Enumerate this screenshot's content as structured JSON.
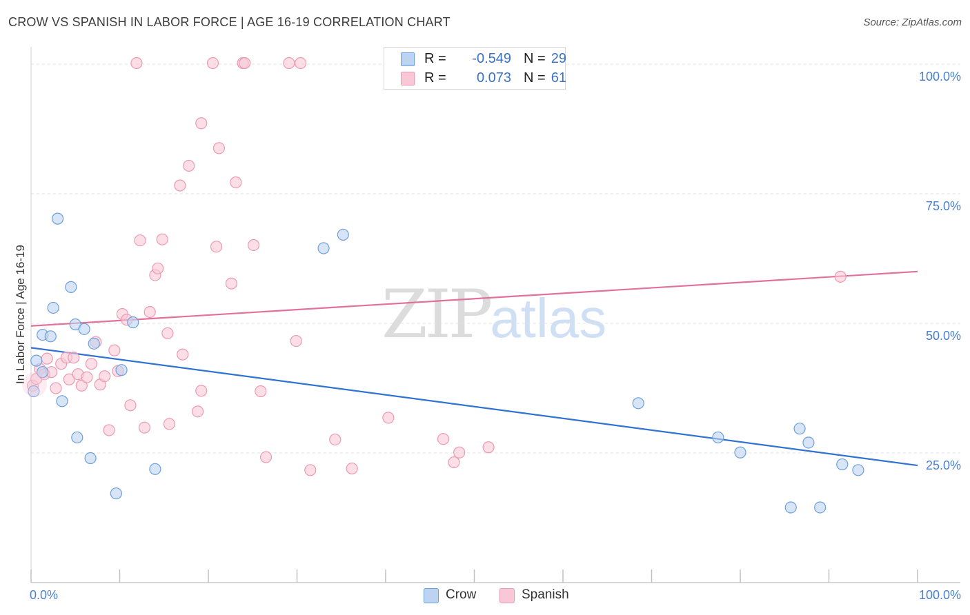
{
  "header": {
    "title": "CROW VS SPANISH IN LABOR FORCE | AGE 16-19 CORRELATION CHART",
    "source": "Source: ZipAtlas.com"
  },
  "watermark": {
    "zip": "ZIP",
    "atlas": "atlas"
  },
  "legend": {
    "r_label": "R =",
    "n_label": "N =",
    "crow": {
      "r": "-0.549",
      "n": "29"
    },
    "spanish": {
      "r": "0.073",
      "n": "61"
    }
  },
  "colors": {
    "crow_fill": "#bcd4f2",
    "crow_stroke": "#6c9fdc",
    "crow_line": "#2f72d0",
    "spanish_fill": "#f8c8d6",
    "spanish_stroke": "#ec9ab3",
    "spanish_line": "#e2709a",
    "tick_text": "#4a7fcf",
    "grid": "#e2e2e2"
  },
  "chart_data": {
    "type": "scatter",
    "title": "CROW VS SPANISH IN LABOR FORCE | AGE 16-19 CORRELATION CHART",
    "xlabel": "",
    "ylabel": "In Labor Force | Age 16-19",
    "xlim": [
      0,
      100
    ],
    "ylim": [
      0,
      102
    ],
    "x_tick_labels": [
      {
        "value": 0,
        "label": "0.0%"
      },
      {
        "value": 100,
        "label": "100.0%"
      }
    ],
    "y_tick_labels": [
      {
        "value": 25,
        "label": "25.0%"
      },
      {
        "value": 50,
        "label": "50.0%"
      },
      {
        "value": 75,
        "label": "75.0%"
      },
      {
        "value": 100,
        "label": "100.0%"
      }
    ],
    "series": [
      {
        "name": "Crow",
        "trend": {
          "x": [
            0,
            100
          ],
          "y": [
            45.3,
            22.6
          ]
        },
        "points": [
          {
            "x": 0.3,
            "y": 36.9
          },
          {
            "x": 0.6,
            "y": 42.8
          },
          {
            "x": 1.3,
            "y": 40.6
          },
          {
            "x": 1.3,
            "y": 47.8
          },
          {
            "x": 2.2,
            "y": 47.5
          },
          {
            "x": 2.5,
            "y": 53.0
          },
          {
            "x": 3.0,
            "y": 70.2
          },
          {
            "x": 3.5,
            "y": 35.0
          },
          {
            "x": 4.5,
            "y": 57.0
          },
          {
            "x": 5.0,
            "y": 49.8
          },
          {
            "x": 5.2,
            "y": 28.0
          },
          {
            "x": 6.0,
            "y": 48.9
          },
          {
            "x": 6.7,
            "y": 24.0
          },
          {
            "x": 7.1,
            "y": 46.1
          },
          {
            "x": 9.6,
            "y": 17.2
          },
          {
            "x": 10.2,
            "y": 41.0
          },
          {
            "x": 11.5,
            "y": 50.2
          },
          {
            "x": 14.0,
            "y": 21.9
          },
          {
            "x": 33.0,
            "y": 64.5
          },
          {
            "x": 35.2,
            "y": 67.1
          },
          {
            "x": 68.5,
            "y": 34.6
          },
          {
            "x": 77.5,
            "y": 28.0
          },
          {
            "x": 80.0,
            "y": 25.1
          },
          {
            "x": 85.7,
            "y": 14.5
          },
          {
            "x": 86.7,
            "y": 29.7
          },
          {
            "x": 87.7,
            "y": 27.0
          },
          {
            "x": 89.0,
            "y": 14.5
          },
          {
            "x": 91.5,
            "y": 22.8
          },
          {
            "x": 93.3,
            "y": 21.7
          }
        ]
      },
      {
        "name": "Spanish",
        "trend": {
          "x": [
            0,
            100
          ],
          "y": [
            49.5,
            60.0
          ]
        },
        "points": [
          {
            "x": 0.2,
            "y": 38.0
          },
          {
            "x": 0.6,
            "y": 39.3
          },
          {
            "x": 1.0,
            "y": 41.2
          },
          {
            "x": 1.5,
            "y": 40.2
          },
          {
            "x": 1.8,
            "y": 43.2
          },
          {
            "x": 2.3,
            "y": 40.6
          },
          {
            "x": 2.8,
            "y": 37.5
          },
          {
            "x": 3.4,
            "y": 42.2
          },
          {
            "x": 4.0,
            "y": 43.4
          },
          {
            "x": 4.3,
            "y": 39.2
          },
          {
            "x": 4.8,
            "y": 43.4
          },
          {
            "x": 5.3,
            "y": 40.2
          },
          {
            "x": 5.7,
            "y": 38.0
          },
          {
            "x": 6.3,
            "y": 39.6
          },
          {
            "x": 6.8,
            "y": 42.2
          },
          {
            "x": 7.3,
            "y": 46.4
          },
          {
            "x": 7.8,
            "y": 38.2
          },
          {
            "x": 8.3,
            "y": 39.8
          },
          {
            "x": 8.8,
            "y": 29.4
          },
          {
            "x": 9.4,
            "y": 44.8
          },
          {
            "x": 9.8,
            "y": 40.8
          },
          {
            "x": 10.3,
            "y": 51.8
          },
          {
            "x": 10.8,
            "y": 50.7
          },
          {
            "x": 11.2,
            "y": 34.2
          },
          {
            "x": 11.9,
            "y": 100.2
          },
          {
            "x": 12.3,
            "y": 66.0
          },
          {
            "x": 12.8,
            "y": 29.9
          },
          {
            "x": 13.4,
            "y": 52.2
          },
          {
            "x": 14.0,
            "y": 59.3
          },
          {
            "x": 14.3,
            "y": 60.6
          },
          {
            "x": 14.8,
            "y": 66.2
          },
          {
            "x": 15.4,
            "y": 48.1
          },
          {
            "x": 15.6,
            "y": 30.6
          },
          {
            "x": 16.8,
            "y": 76.6
          },
          {
            "x": 17.1,
            "y": 44.0
          },
          {
            "x": 17.8,
            "y": 80.4
          },
          {
            "x": 18.8,
            "y": 33.0
          },
          {
            "x": 19.2,
            "y": 37.0
          },
          {
            "x": 19.2,
            "y": 88.6
          },
          {
            "x": 20.5,
            "y": 100.2
          },
          {
            "x": 20.9,
            "y": 64.8
          },
          {
            "x": 21.2,
            "y": 83.8
          },
          {
            "x": 22.6,
            "y": 57.7
          },
          {
            "x": 23.1,
            "y": 77.2
          },
          {
            "x": 23.9,
            "y": 100.2
          },
          {
            "x": 24.1,
            "y": 100.2
          },
          {
            "x": 25.1,
            "y": 65.1
          },
          {
            "x": 25.9,
            "y": 36.9
          },
          {
            "x": 26.5,
            "y": 24.2
          },
          {
            "x": 29.1,
            "y": 100.2
          },
          {
            "x": 29.9,
            "y": 46.6
          },
          {
            "x": 30.4,
            "y": 100.2
          },
          {
            "x": 31.5,
            "y": 21.7
          },
          {
            "x": 34.3,
            "y": 27.6
          },
          {
            "x": 36.2,
            "y": 22.0
          },
          {
            "x": 40.3,
            "y": 31.8
          },
          {
            "x": 46.5,
            "y": 27.7
          },
          {
            "x": 47.7,
            "y": 23.2
          },
          {
            "x": 48.3,
            "y": 25.1
          },
          {
            "x": 51.6,
            "y": 26.1
          },
          {
            "x": 91.3,
            "y": 59.0
          }
        ]
      }
    ]
  }
}
